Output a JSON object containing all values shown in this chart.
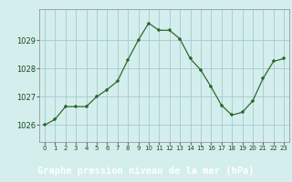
{
  "x": [
    0,
    1,
    2,
    3,
    4,
    5,
    6,
    7,
    8,
    9,
    10,
    11,
    12,
    13,
    14,
    15,
    16,
    17,
    18,
    19,
    20,
    21,
    22,
    23
  ],
  "y": [
    1026.0,
    1026.2,
    1026.65,
    1026.65,
    1026.65,
    1027.0,
    1027.25,
    1027.55,
    1028.3,
    1029.0,
    1029.6,
    1029.35,
    1029.35,
    1029.05,
    1028.35,
    1027.95,
    1027.35,
    1026.7,
    1026.35,
    1026.45,
    1026.85,
    1027.65,
    1028.25,
    1028.35
  ],
  "line_color": "#2d6a2d",
  "marker_color": "#2d6a2d",
  "plot_bg_color": "#d4eeed",
  "fig_bg_color": "#d4eeed",
  "label_bg_color": "#3a7a3a",
  "grid_color": "#a0cccc",
  "xlabel": "Graphe pression niveau de la mer (hPa)",
  "xlabel_fontsize": 7.5,
  "ylabel_ticks": [
    1026,
    1027,
    1028,
    1029
  ],
  "ylim": [
    1025.4,
    1030.1
  ],
  "xlim": [
    -0.5,
    23.5
  ],
  "xticks": [
    0,
    1,
    2,
    3,
    4,
    5,
    6,
    7,
    8,
    9,
    10,
    11,
    12,
    13,
    14,
    15,
    16,
    17,
    18,
    19,
    20,
    21,
    22,
    23
  ]
}
